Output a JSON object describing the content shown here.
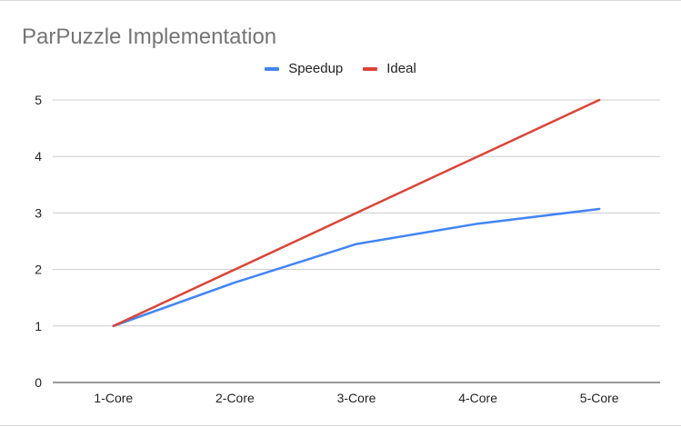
{
  "chart_data": {
    "type": "line",
    "title": "ParPuzzle Implementation",
    "categories": [
      "1-Core",
      "2-Core",
      "3-Core",
      "4-Core",
      "5-Core"
    ],
    "series": [
      {
        "name": "Speedup",
        "color": "#4285f4",
        "values": [
          1.0,
          1.77,
          2.45,
          2.81,
          3.07
        ]
      },
      {
        "name": "Ideal",
        "color": "#db4437",
        "values": [
          1,
          2,
          3,
          4,
          5
        ]
      }
    ],
    "ylim": [
      0,
      5
    ],
    "yticks": [
      "0",
      "1",
      "2",
      "3",
      "4",
      "5"
    ],
    "grid": true,
    "legend": "top-center"
  }
}
